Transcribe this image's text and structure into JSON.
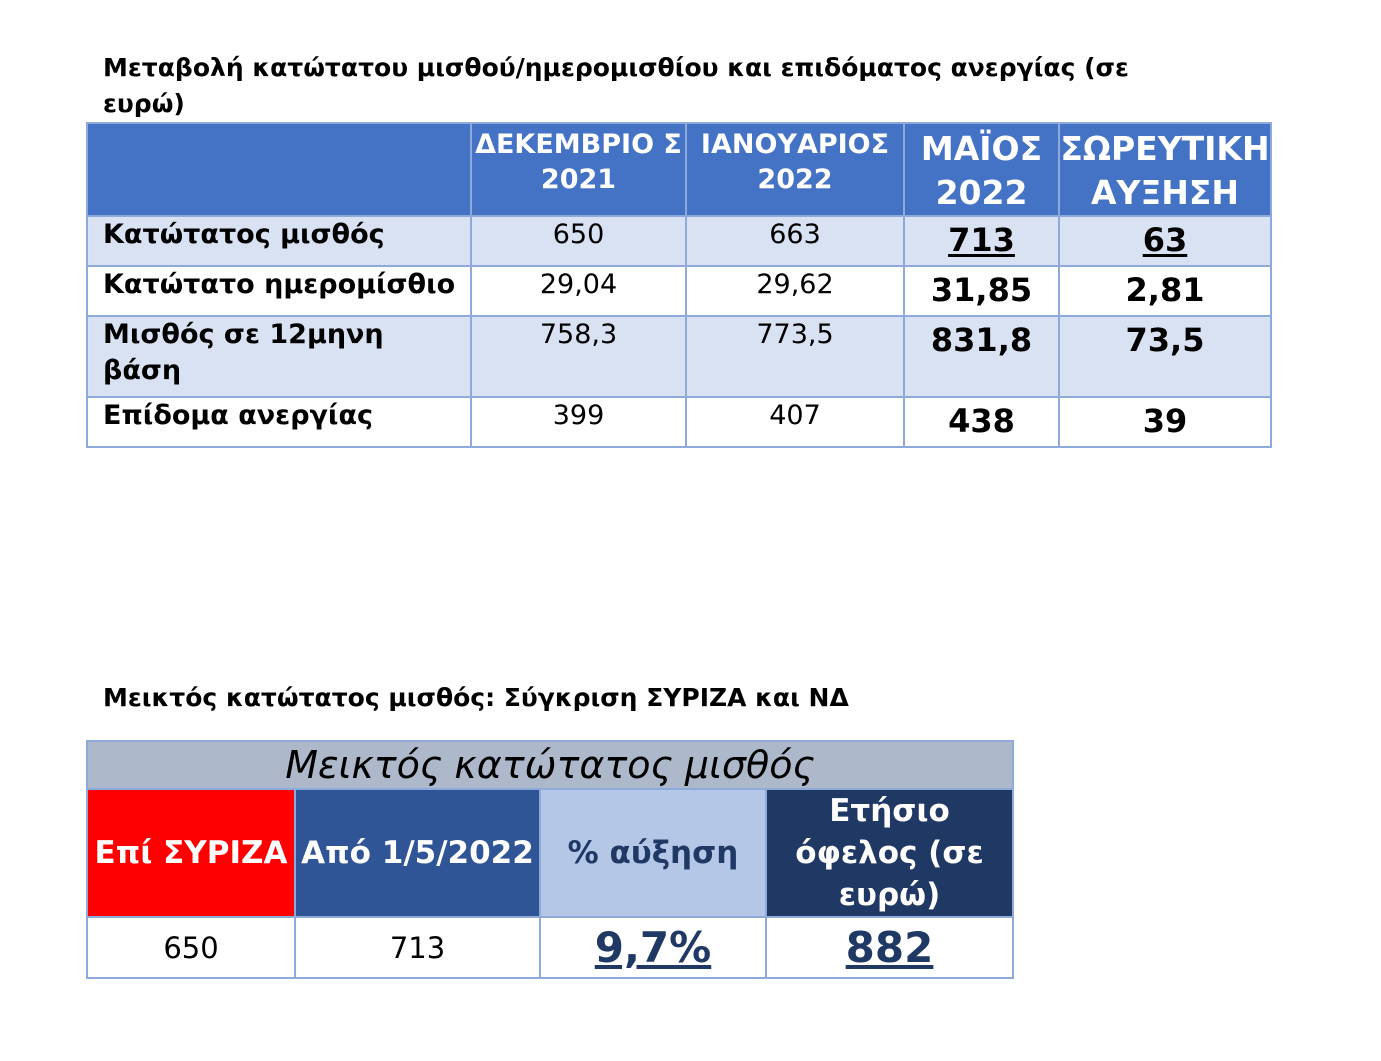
{
  "table1": {
    "title": "Μεταβολή κατώτατου μισθού/ημερομισθίου και επιδόματος ανεργίας (σε ευρώ)",
    "headers": [
      "",
      "ΔΕΚΕΜΒΡΙΟ Σ 2021",
      "ΙΑΝΟΥΑΡΙΟΣ 2022",
      "ΜΑΪΟΣ 2022",
      "ΣΩΡΕΥΤΙΚΗ ΑΥΞΗΣΗ"
    ],
    "rows": [
      {
        "label": "Κατώτατος μισθός",
        "dec2021": "650",
        "jan2022": "663",
        "may2022": "713",
        "cumulative": "63"
      },
      {
        "label": "Κατώτατο ημερομίσθιο",
        "dec2021": "29,04",
        "jan2022": "29,62",
        "may2022": "31,85",
        "cumulative": "2,81"
      },
      {
        "label": "Μισθός σε 12μηνη βάση",
        "dec2021": "758,3",
        "jan2022": "773,5",
        "may2022": "831,8",
        "cumulative": "73,5"
      },
      {
        "label": "Επίδομα ανεργίας",
        "dec2021": "399",
        "jan2022": "407",
        "may2022": "438",
        "cumulative": "39"
      }
    ],
    "colors": {
      "header_bg": "#4472c4",
      "band_bg": "#d9e2f3",
      "border": "#8eaadb"
    }
  },
  "table2": {
    "title": "Μεικτός κατώτατος μισθός: Σύγκριση ΣΥΡΙΖΑ και ΝΔ",
    "header": "Μεικτός κατώτατος μισθός",
    "columns": [
      "Επί ΣΥΡΙΖΑ",
      "Από 1/5/2022",
      "% αύξηση",
      "Ετήσιο όφελος (σε ευρώ)"
    ],
    "values": [
      "650",
      "713",
      "9,7%",
      "882"
    ],
    "colors": {
      "syriza": "#ff0000",
      "from": "#2f5597",
      "increase": "#b4c7e7",
      "benefit": "#203864",
      "header_bg": "#adb9ca"
    }
  }
}
